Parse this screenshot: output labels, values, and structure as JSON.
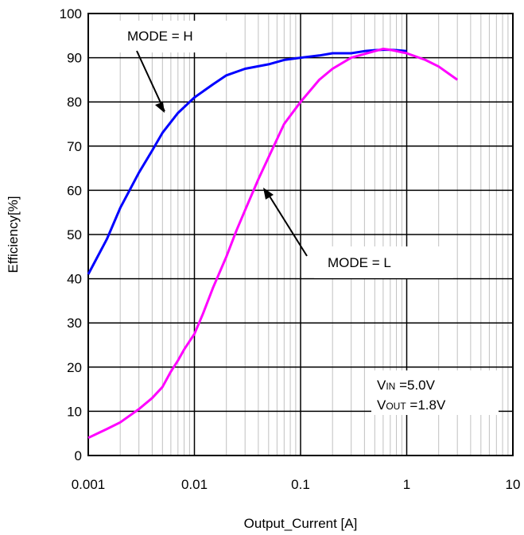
{
  "chart_data": {
    "type": "line",
    "title": "",
    "xlabel": "Output_Current [A]",
    "ylabel": "Efficiency[%]",
    "xscale": "log",
    "xlim": [
      0.001,
      10
    ],
    "ylim": [
      0,
      100
    ],
    "x_ticks": [
      "0.001",
      "0.01",
      "0.1",
      "1",
      "10"
    ],
    "y_ticks": [
      "0",
      "10",
      "20",
      "30",
      "40",
      "50",
      "60",
      "70",
      "80",
      "90",
      "100"
    ],
    "grid": true,
    "series": [
      {
        "name": "MODE = H",
        "color": "#0000ff",
        "x": [
          0.001,
          0.0015,
          0.002,
          0.003,
          0.004,
          0.005,
          0.007,
          0.01,
          0.015,
          0.02,
          0.03,
          0.05,
          0.07,
          0.1,
          0.15,
          0.2,
          0.3,
          0.4,
          0.5,
          0.6,
          0.7,
          0.8,
          1.0
        ],
        "y": [
          41,
          49,
          56,
          64,
          69,
          73,
          77.5,
          81,
          84,
          86,
          87.5,
          88.5,
          89.5,
          90,
          90.5,
          91,
          91,
          91.5,
          91.7,
          91.8,
          91.8,
          91.7,
          91.5
        ]
      },
      {
        "name": "MODE = L",
        "color": "#ff00ff",
        "x": [
          0.001,
          0.0015,
          0.002,
          0.003,
          0.004,
          0.005,
          0.006,
          0.007,
          0.008,
          0.01,
          0.012,
          0.015,
          0.02,
          0.025,
          0.03,
          0.04,
          0.05,
          0.07,
          0.1,
          0.15,
          0.2,
          0.3,
          0.5,
          0.6,
          0.7,
          0.8,
          1.0,
          1.5,
          2.0,
          3.0
        ],
        "y": [
          4,
          6,
          7.5,
          10.5,
          13,
          15.5,
          19,
          21.5,
          24,
          27.5,
          32,
          38,
          45,
          51,
          55.5,
          62.5,
          67.5,
          75,
          80,
          85,
          87.5,
          90,
          91.5,
          92,
          91.8,
          91.5,
          91,
          89.5,
          88,
          85
        ]
      }
    ],
    "annotations": [
      "MODE = H",
      "MODE = L"
    ],
    "conditions": {
      "vin_sym": "V",
      "vin_sub": "IN",
      "vin_val": " =5.0V",
      "vout_sym": "V",
      "vout_sub": "OUT",
      "vout_val": " =1.8V"
    }
  }
}
